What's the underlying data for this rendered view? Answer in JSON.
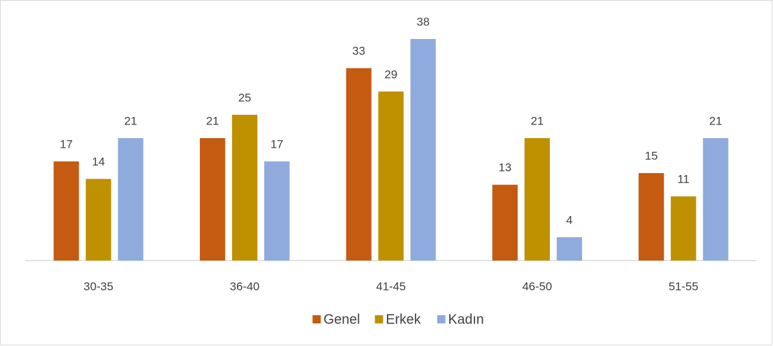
{
  "chart_data": {
    "type": "bar",
    "categories": [
      "30-35",
      "36-40",
      "41-45",
      "46-50",
      "51-55"
    ],
    "series": [
      {
        "name": "Genel",
        "color": "#c55a11",
        "values": [
          17,
          21,
          33,
          13,
          15
        ]
      },
      {
        "name": "Erkek",
        "color": "#bf9000",
        "values": [
          14,
          25,
          29,
          21,
          11
        ]
      },
      {
        "name": "Kadın",
        "color": "#8faadc",
        "values": [
          21,
          17,
          38,
          4,
          21
        ]
      }
    ],
    "ylim": [
      0,
      40
    ],
    "grid": false,
    "legend": "bottom"
  }
}
